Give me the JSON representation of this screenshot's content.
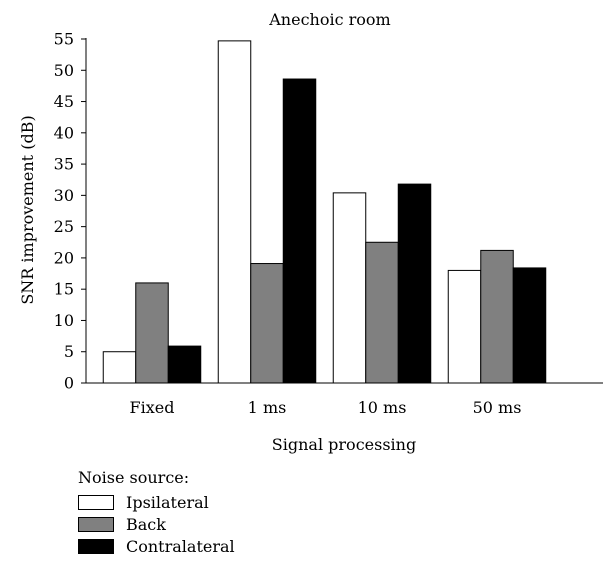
{
  "chart_data": {
    "type": "bar",
    "title": "Anechoic room",
    "xlabel": "Signal processing",
    "ylabel": "SNR improvement (dB)",
    "categories": [
      "Fixed",
      "1 ms",
      "10 ms",
      "50 ms"
    ],
    "ylim": [
      0,
      55
    ],
    "yticks": [
      0,
      5,
      10,
      15,
      20,
      25,
      30,
      35,
      40,
      45,
      50,
      55
    ],
    "grid": false,
    "legend_title": "Noise source:",
    "legend_position": "bottom-left",
    "series": [
      {
        "name": "Ipsilateral",
        "color": "#ffffff",
        "values": [
          5,
          54.7,
          30.4,
          18
        ]
      },
      {
        "name": "Back",
        "color": "#808080",
        "values": [
          16,
          19.1,
          22.5,
          21.2
        ]
      },
      {
        "name": "Contralateral",
        "color": "#000000",
        "values": [
          5.9,
          48.6,
          31.8,
          18.4
        ]
      }
    ]
  }
}
